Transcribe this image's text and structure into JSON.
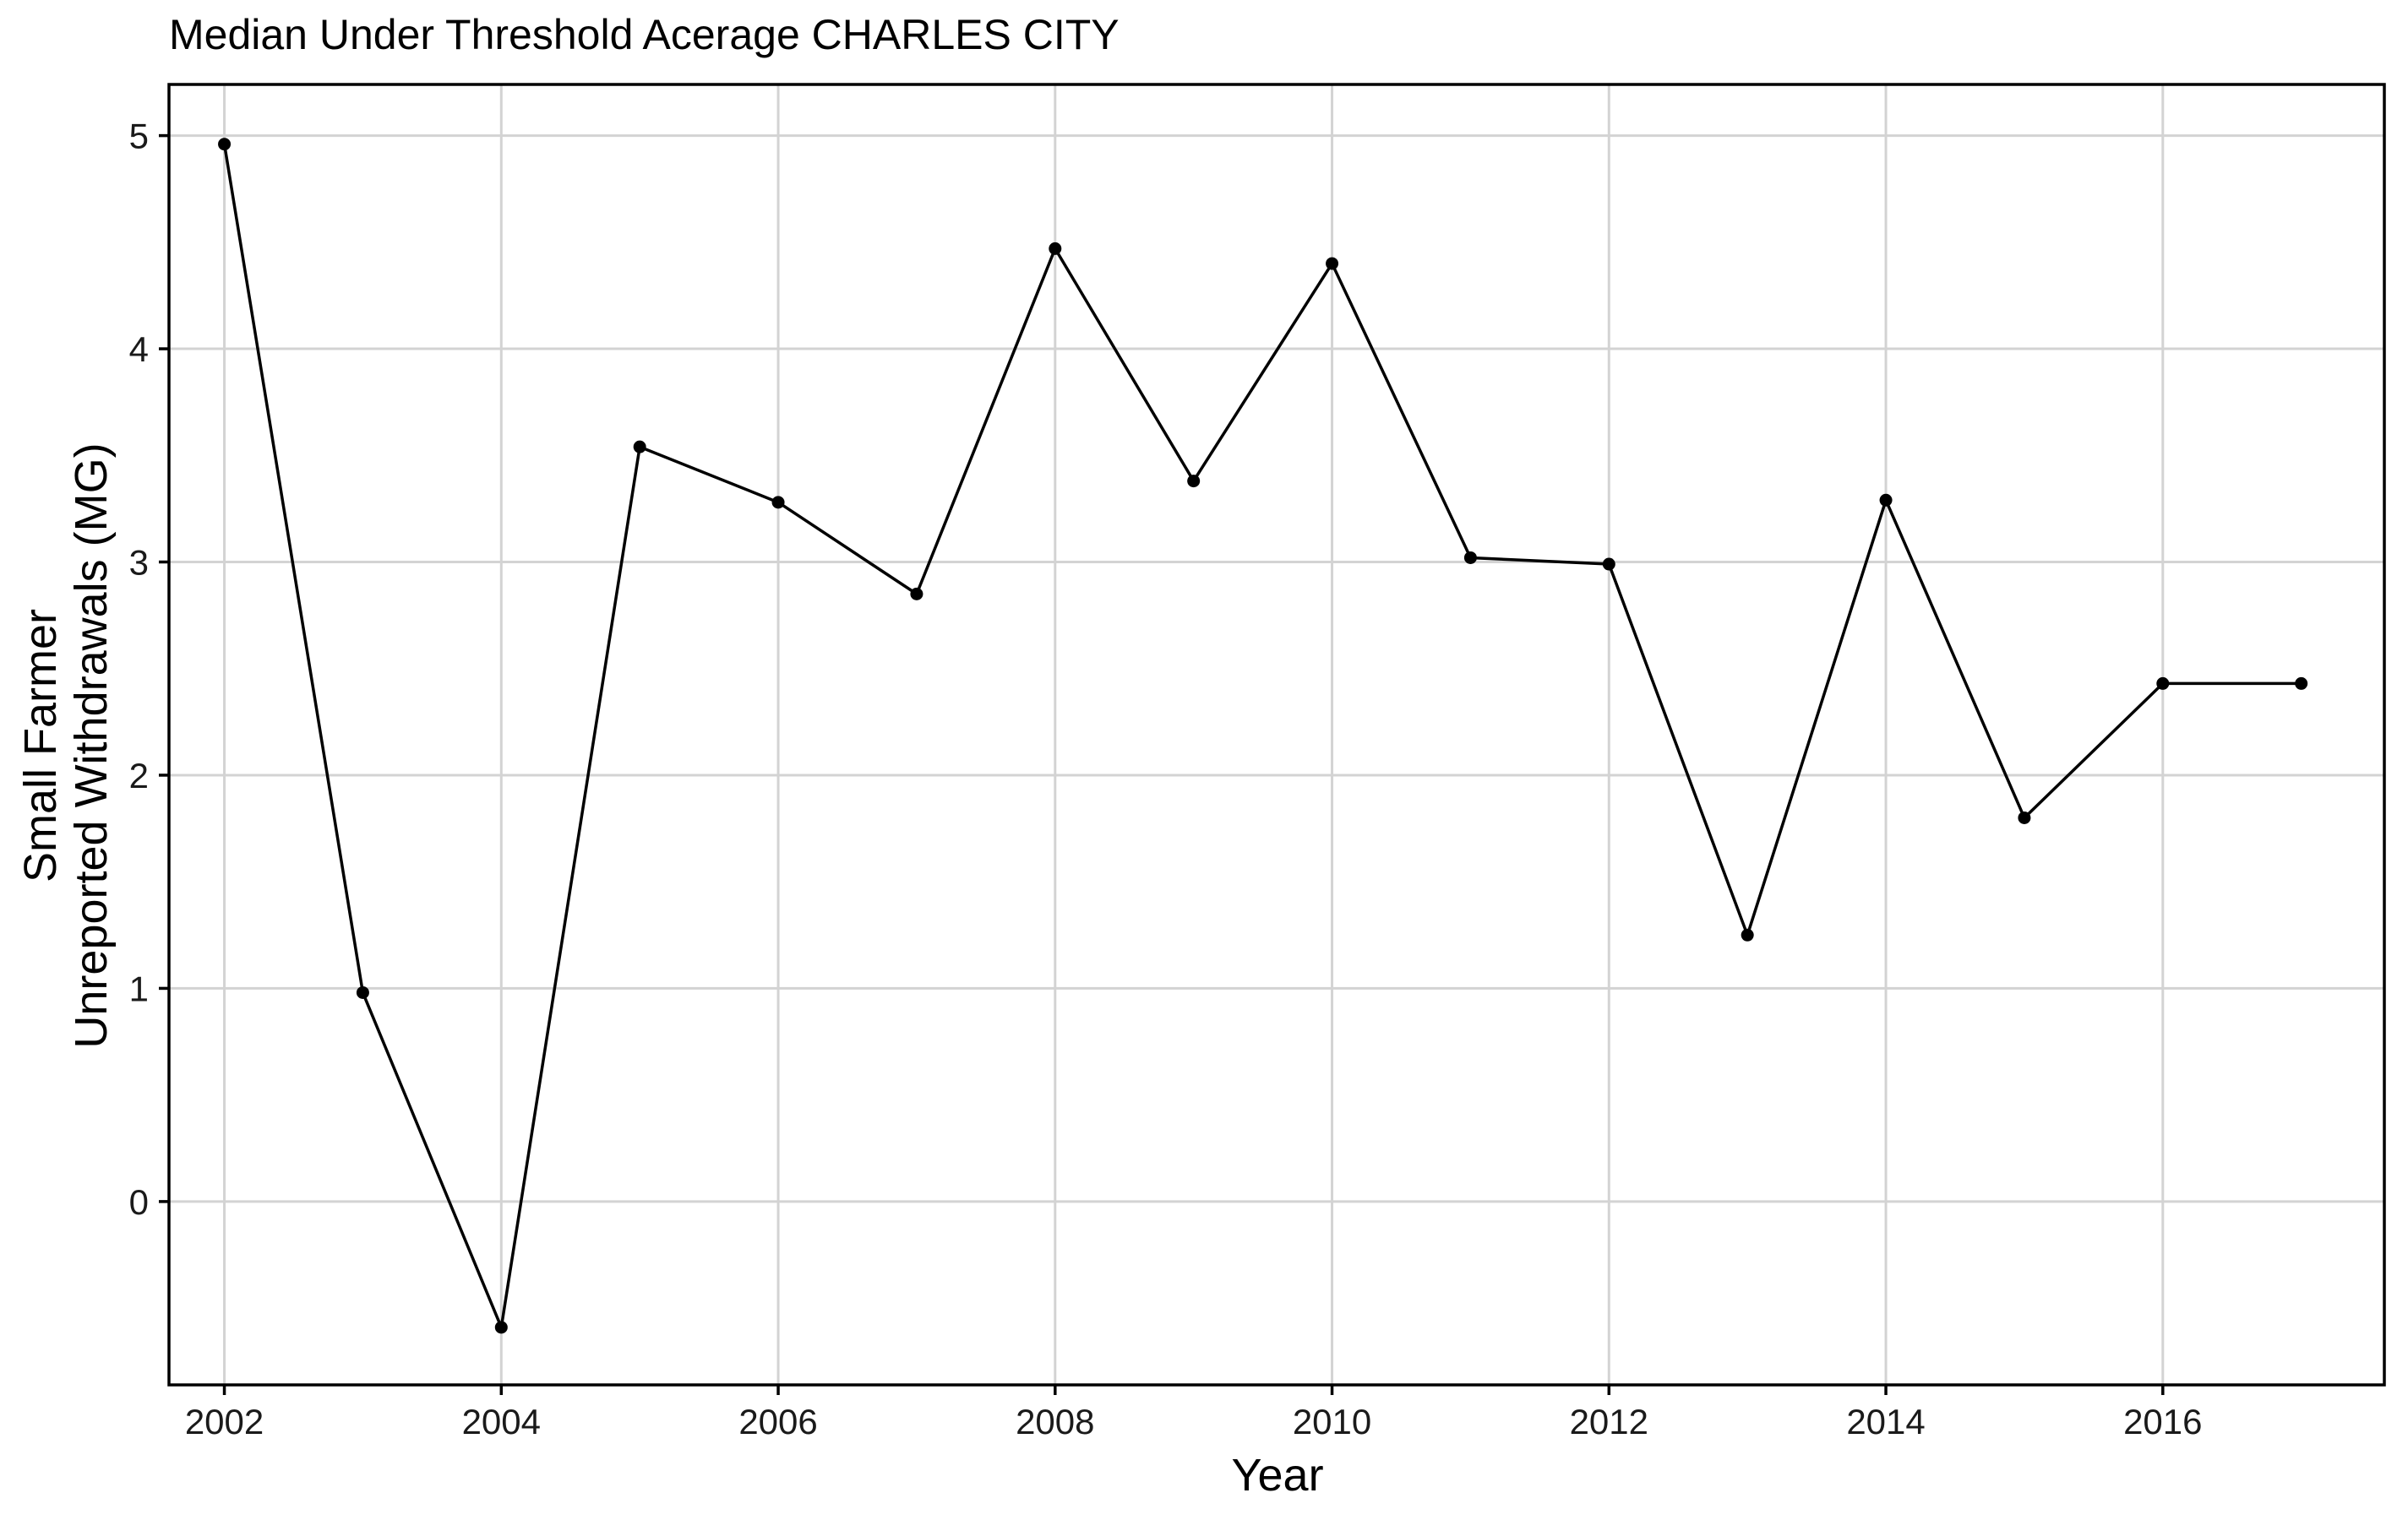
{
  "chart_data": {
    "type": "line",
    "title": "Median Under Threshold Acerage CHARLES CITY",
    "xlabel": "Year",
    "ylabel_lines": [
      "Small Farmer",
      "Unreported Withdrawals (MG)"
    ],
    "x": [
      2002,
      2003,
      2004,
      2005,
      2006,
      2007,
      2008,
      2009,
      2010,
      2011,
      2012,
      2013,
      2014,
      2015,
      2016,
      2017
    ],
    "series": [
      {
        "values": [
          4.96,
          0.98,
          -0.59,
          3.54,
          3.28,
          2.85,
          4.47,
          3.38,
          4.4,
          3.02,
          2.99,
          1.25,
          3.29,
          1.8,
          2.43,
          2.43
        ],
        "color": "#000000"
      }
    ],
    "xlim": [
      2001.6,
      2017.6
    ],
    "ylim": [
      -0.86,
      5.24
    ],
    "x_ticks": [
      2002,
      2004,
      2006,
      2008,
      2010,
      2012,
      2014,
      2016
    ],
    "x_tick_labels": [
      "2002",
      "2004",
      "2006",
      "2008",
      "2010",
      "2012",
      "2014",
      "2016"
    ],
    "y_ticks": [
      0,
      1,
      2,
      3,
      4,
      5
    ],
    "y_tick_labels": [
      "0",
      "1",
      "2",
      "3",
      "4",
      "5"
    ],
    "grid": true,
    "legend": "none"
  }
}
